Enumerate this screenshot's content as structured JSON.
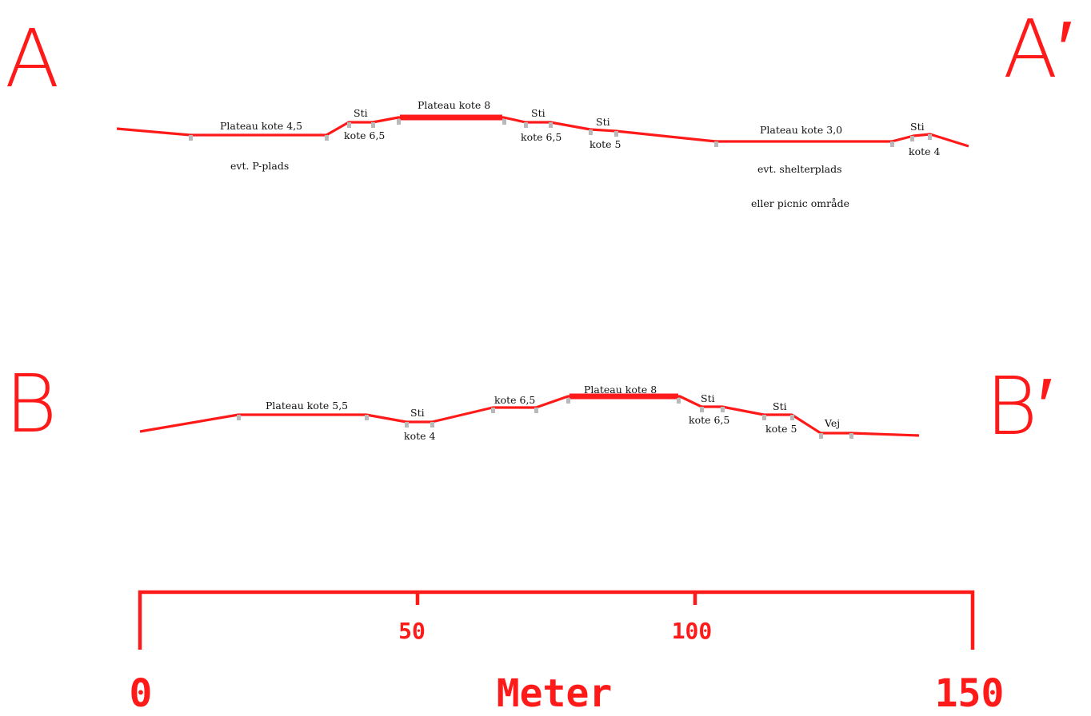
{
  "section_a": {
    "start_label": "A",
    "end_label": "A′",
    "labels": {
      "plateau_45": "Plateau kote 4,5",
      "p_plads": "evt. P-plads",
      "sti_1": "Sti",
      "kote_65_1": "kote 6,5",
      "plateau_8": "Plateau kote 8",
      "sti_2": "Sti",
      "kote_65_2": "kote 6,5",
      "sti_3": "Sti",
      "kote_5": "kote 5",
      "plateau_30": "Plateau kote 3,0",
      "shelterplads": "evt. shelterplads",
      "picnic": "eller picnic område",
      "sti_4": "Sti",
      "kote_4": "kote 4"
    }
  },
  "section_b": {
    "start_label": "B",
    "end_label": "B′",
    "labels": {
      "plateau_55": "Plateau kote 5,5",
      "sti_1": "Sti",
      "kote_4": "kote 4",
      "kote_65_1": "kote 6,5",
      "plateau_8": "Plateau kote 8",
      "sti_2": "Sti",
      "kote_65_2": "kote 6,5",
      "sti_3": "Sti",
      "kote_5": "kote 5",
      "vej": "Vej"
    }
  },
  "scale_bar": {
    "tick_0": "0",
    "tick_50": "50",
    "tick_100": "100",
    "tick_150": "150",
    "unit": "Meter"
  },
  "colors": {
    "profile_line": "#ff1a1a",
    "marker": "#b9b9b9",
    "text": "#111111"
  }
}
